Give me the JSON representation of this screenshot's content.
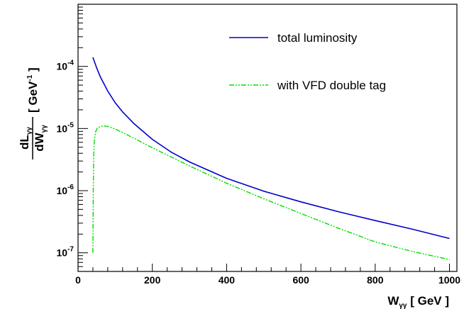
{
  "chart_data": {
    "type": "line",
    "xlabel": {
      "main": "W",
      "sub": "γγ",
      "rest": " [ GeV ]"
    },
    "ylabel": {
      "num_main": "dL",
      "num_sub": "γγ",
      "den_main": "dW",
      "den_sub": "γγ",
      "units_pre": "[ GeV",
      "units_sup": "-1",
      "units_post": " ]"
    },
    "xlim": [
      0,
      1020
    ],
    "ylim_log10": [
      -7.3,
      -3.0
    ],
    "log_y": true,
    "x_ticks": [
      {
        "value": 0,
        "label": "0"
      },
      {
        "value": 200,
        "label": "200"
      },
      {
        "value": 400,
        "label": "400"
      },
      {
        "value": 600,
        "label": "600"
      },
      {
        "value": 800,
        "label": "800"
      },
      {
        "value": 1000,
        "label": "1000"
      }
    ],
    "y_ticks": [
      {
        "exp": -7,
        "base": "10",
        "sup": "-7"
      },
      {
        "exp": -6,
        "base": "10",
        "sup": "-6"
      },
      {
        "exp": -5,
        "base": "10",
        "sup": "-5"
      },
      {
        "exp": -4,
        "base": "10",
        "sup": "-4"
      }
    ],
    "legend_position": "top-right",
    "series": [
      {
        "name": "total luminosity",
        "color": "#0000cc",
        "style": "solid",
        "x": [
          40,
          50,
          60,
          80,
          100,
          120,
          150,
          200,
          250,
          300,
          400,
          500,
          600,
          700,
          800,
          900,
          1000
        ],
        "y": [
          0.00014,
          9.5e-05,
          6.8e-05,
          4e-05,
          2.6e-05,
          1.85e-05,
          1.21e-05,
          6.7e-06,
          4.2e-06,
          2.9e-06,
          1.58e-06,
          9.8e-07,
          6.6e-07,
          4.6e-07,
          3.3e-07,
          2.4e-07,
          1.7e-07
        ]
      },
      {
        "name": "with VFD double tag",
        "color": "#00dd00",
        "style": "dash-dot-dot",
        "x": [
          40,
          41,
          42,
          44,
          47,
          52,
          60,
          70,
          80,
          100,
          120,
          150,
          200,
          250,
          300,
          400,
          500,
          600,
          700,
          800,
          900,
          1000
        ],
        "y": [
          1e-07,
          1e-06,
          3.5e-06,
          6.5e-06,
          8.8e-06,
          1.02e-05,
          1.08e-05,
          1.1e-05,
          1.08e-05,
          9.8e-06,
          8.6e-06,
          7e-06,
          4.9e-06,
          3.5e-06,
          2.5e-06,
          1.32e-06,
          7.4e-07,
          4.3e-07,
          2.5e-07,
          1.5e-07,
          1.05e-07,
          7.8e-08
        ]
      }
    ]
  }
}
